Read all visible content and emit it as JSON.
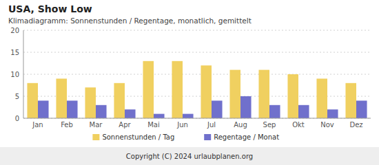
{
  "chart_data": {
    "type": "bar",
    "title": "USA,  Show Low",
    "subtitle": "Klimadiagramm: Sonnenstunden / Regentage, monatlich, gemittelt",
    "categories": [
      "Jan",
      "Feb",
      "Mar",
      "Apr",
      "Mai",
      "Jun",
      "Jul",
      "Aug",
      "Sep",
      "Okt",
      "Nov",
      "Dez"
    ],
    "series": [
      {
        "name": "Sonnenstunden / Tag",
        "color": "#f0d060",
        "values": [
          8,
          9,
          7,
          8,
          13,
          13,
          12,
          11,
          11,
          10,
          9,
          8
        ]
      },
      {
        "name": "Regentage / Monat",
        "color": "#7070cc",
        "values": [
          4,
          4,
          3,
          2,
          1,
          1,
          4,
          5,
          3,
          3,
          2,
          4
        ]
      }
    ],
    "ylim": [
      0,
      20
    ],
    "yticks": [
      0,
      5,
      10,
      15,
      20
    ],
    "grid": true,
    "legend": "bottom",
    "annotations": [
      "Copyright (C) 2024 urlaubplanen.org"
    ]
  }
}
